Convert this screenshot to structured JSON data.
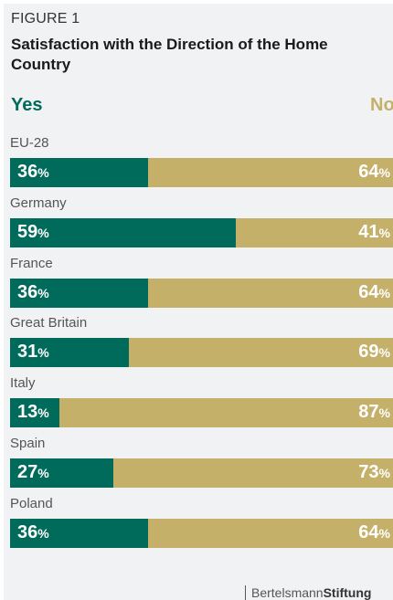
{
  "figure_label": "FIGURE 1",
  "brand": {
    "part1": "Bertelsmann",
    "part2": "Stiftung"
  },
  "colors": {
    "yes": "#006b5a",
    "no": "#c5b06a",
    "background": "#f1f2f4"
  },
  "chart_data": {
    "type": "bar",
    "orientation": "horizontal-stacked-100",
    "title": "Satisfaction with the Direction of the Home Country",
    "legend": [
      "Yes",
      "No"
    ],
    "legend_placement": "top",
    "value_suffix": "%",
    "categories": [
      "EU-28",
      "Germany",
      "France",
      "Great Britain",
      "Italy",
      "Spain",
      "Poland"
    ],
    "series": [
      {
        "name": "Yes",
        "values": [
          36,
          59,
          36,
          31,
          13,
          27,
          36
        ]
      },
      {
        "name": "No",
        "values": [
          64,
          41,
          64,
          69,
          87,
          73,
          64
        ]
      }
    ],
    "xlim": [
      0,
      100
    ],
    "grid": false
  }
}
